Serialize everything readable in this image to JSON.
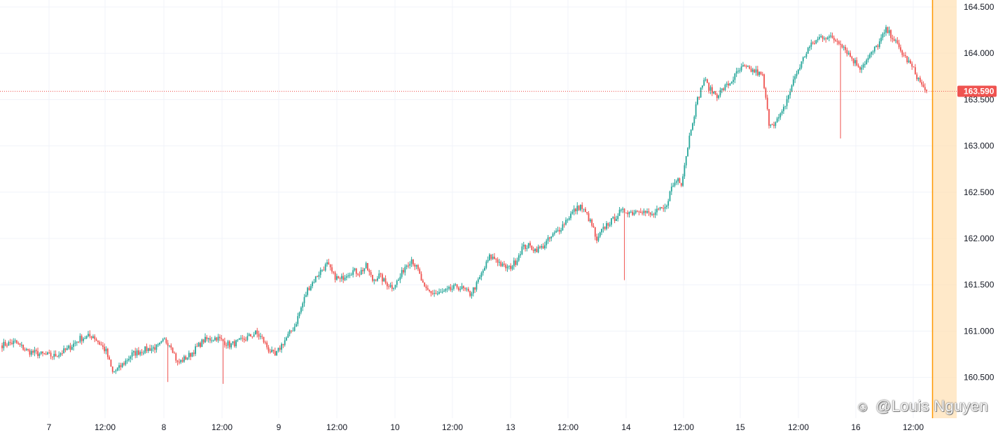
{
  "chart_data": {
    "type": "candlestick",
    "y_axis": {
      "min": 160.2,
      "max": 164.55,
      "tick_labels": [
        "160.500",
        "161.000",
        "161.500",
        "162.000",
        "162.500",
        "163.000",
        "163.500",
        "164.000",
        "164.500"
      ],
      "tick_values": [
        160.5,
        161.0,
        161.5,
        162.0,
        162.5,
        163.0,
        163.5,
        164.0,
        164.5
      ]
    },
    "x_axis": {
      "tick_labels": [
        "7",
        "12:00",
        "8",
        "12:00",
        "9",
        "12:00",
        "10",
        "12:00",
        "13",
        "12:00",
        "14",
        "12:00",
        "15",
        "12:00",
        "16",
        "12:00"
      ]
    },
    "last_price": 163.59,
    "last_price_label": "163.590",
    "grid": true,
    "colors": {
      "up": "#26a69a",
      "down": "#ef5350",
      "price_line": "#ef5350",
      "highlight": "#ff9800",
      "highlight_fill": "#ffe0b2"
    },
    "trajectory": [
      [
        0,
        160.85
      ],
      [
        8,
        160.88
      ],
      [
        16,
        160.78
      ],
      [
        24,
        160.75
      ],
      [
        32,
        160.73
      ],
      [
        40,
        160.8
      ],
      [
        48,
        160.92
      ],
      [
        56,
        160.95
      ],
      [
        64,
        160.78
      ],
      [
        68,
        160.55
      ],
      [
        72,
        160.6
      ],
      [
        80,
        160.75
      ],
      [
        88,
        160.8
      ],
      [
        96,
        160.83
      ],
      [
        100,
        160.9
      ],
      [
        104,
        160.85
      ],
      [
        108,
        160.65
      ],
      [
        116,
        160.75
      ],
      [
        124,
        160.9
      ],
      [
        132,
        160.93
      ],
      [
        140,
        160.85
      ],
      [
        148,
        160.9
      ],
      [
        156,
        160.98
      ],
      [
        160,
        160.92
      ],
      [
        164,
        160.8
      ],
      [
        168,
        160.73
      ],
      [
        172,
        160.85
      ],
      [
        176,
        160.95
      ],
      [
        180,
        161.05
      ],
      [
        184,
        161.25
      ],
      [
        188,
        161.45
      ],
      [
        192,
        161.55
      ],
      [
        196,
        161.65
      ],
      [
        200,
        161.72
      ],
      [
        204,
        161.6
      ],
      [
        208,
        161.55
      ],
      [
        212,
        161.62
      ],
      [
        216,
        161.65
      ],
      [
        220,
        161.63
      ],
      [
        224,
        161.7
      ],
      [
        228,
        161.55
      ],
      [
        232,
        161.6
      ],
      [
        236,
        161.52
      ],
      [
        240,
        161.48
      ],
      [
        244,
        161.55
      ],
      [
        248,
        161.7
      ],
      [
        252,
        161.78
      ],
      [
        256,
        161.65
      ],
      [
        260,
        161.45
      ],
      [
        264,
        161.42
      ],
      [
        268,
        161.4
      ],
      [
        272,
        161.42
      ],
      [
        276,
        161.45
      ],
      [
        280,
        161.48
      ],
      [
        284,
        161.45
      ],
      [
        288,
        161.4
      ],
      [
        292,
        161.5
      ],
      [
        296,
        161.65
      ],
      [
        300,
        161.8
      ],
      [
        304,
        161.78
      ],
      [
        308,
        161.7
      ],
      [
        312,
        161.68
      ],
      [
        316,
        161.75
      ],
      [
        320,
        161.9
      ],
      [
        324,
        161.92
      ],
      [
        328,
        161.88
      ],
      [
        332,
        161.9
      ],
      [
        336,
        161.98
      ],
      [
        340,
        162.05
      ],
      [
        344,
        162.12
      ],
      [
        348,
        162.22
      ],
      [
        352,
        162.3
      ],
      [
        356,
        162.35
      ],
      [
        360,
        162.25
      ],
      [
        364,
        162.1
      ],
      [
        366,
        161.95
      ],
      [
        368,
        162.05
      ],
      [
        372,
        162.15
      ],
      [
        376,
        162.2
      ],
      [
        380,
        162.28
      ],
      [
        384,
        162.3
      ],
      [
        388,
        162.28
      ],
      [
        392,
        162.32
      ],
      [
        396,
        162.28
      ],
      [
        400,
        162.25
      ],
      [
        404,
        162.3
      ],
      [
        408,
        162.32
      ],
      [
        412,
        162.55
      ],
      [
        416,
        162.65
      ],
      [
        418,
        162.6
      ],
      [
        420,
        162.8
      ],
      [
        424,
        163.2
      ],
      [
        428,
        163.5
      ],
      [
        432,
        163.72
      ],
      [
        436,
        163.6
      ],
      [
        440,
        163.55
      ],
      [
        444,
        163.62
      ],
      [
        448,
        163.68
      ],
      [
        452,
        163.78
      ],
      [
        456,
        163.85
      ],
      [
        460,
        163.82
      ],
      [
        464,
        163.8
      ],
      [
        468,
        163.75
      ],
      [
        472,
        163.25
      ],
      [
        476,
        163.25
      ],
      [
        480,
        163.35
      ],
      [
        484,
        163.55
      ],
      [
        488,
        163.75
      ],
      [
        492,
        163.9
      ],
      [
        496,
        164.05
      ],
      [
        500,
        164.12
      ],
      [
        504,
        164.18
      ],
      [
        508,
        164.18
      ],
      [
        512,
        164.15
      ],
      [
        516,
        164.12
      ],
      [
        520,
        164.02
      ],
      [
        524,
        163.92
      ],
      [
        528,
        163.85
      ],
      [
        532,
        163.92
      ],
      [
        536,
        164.02
      ],
      [
        540,
        164.12
      ],
      [
        544,
        164.25
      ],
      [
        548,
        164.18
      ],
      [
        552,
        164.05
      ],
      [
        556,
        163.95
      ],
      [
        560,
        163.85
      ],
      [
        564,
        163.72
      ],
      [
        568,
        163.59
      ]
    ],
    "spikes": [
      {
        "index": 102,
        "low": 160.45
      },
      {
        "index": 136,
        "low": 160.43
      },
      {
        "index": 383,
        "low": 161.55
      },
      {
        "index": 516,
        "low": 163.08
      }
    ]
  },
  "watermark": {
    "text": "@Louis Nguyen",
    "icon": "zhihu-logo-icon"
  }
}
